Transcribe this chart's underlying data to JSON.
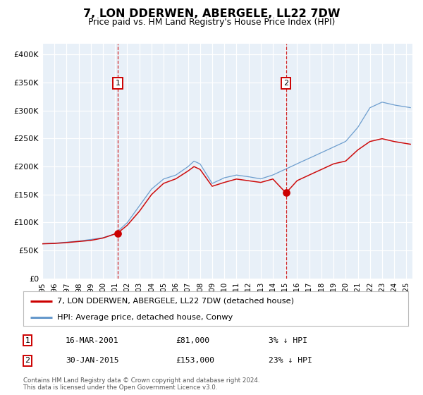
{
  "title": "7, LON DDERWEN, ABERGELE, LL22 7DW",
  "subtitle": "Price paid vs. HM Land Registry's House Price Index (HPI)",
  "legend_label_red": "7, LON DDERWEN, ABERGELE, LL22 7DW (detached house)",
  "legend_label_blue": "HPI: Average price, detached house, Conwy",
  "marker1_date_num": 2001.21,
  "marker1_price": 81000,
  "marker1_text": "16-MAR-2001",
  "marker1_price_str": "£81,000",
  "marker1_hpi_str": "3% ↓ HPI",
  "marker2_date_num": 2015.08,
  "marker2_price": 153000,
  "marker2_text": "30-JAN-2015",
  "marker2_price_str": "£153,000",
  "marker2_hpi_str": "23% ↓ HPI",
  "footer1": "Contains HM Land Registry data © Crown copyright and database right 2024.",
  "footer2": "This data is licensed under the Open Government Licence v3.0.",
  "red_color": "#cc0000",
  "blue_color": "#6699cc",
  "bg_color": "#e8f0f8",
  "grid_color": "#ffffff",
  "ylim": [
    0,
    420000
  ],
  "xlim_start": 1995.0,
  "xlim_end": 2025.5,
  "yticks": [
    0,
    50000,
    100000,
    150000,
    200000,
    250000,
    300000,
    350000,
    400000
  ],
  "ytick_labels": [
    "£0",
    "£50K",
    "£100K",
    "£150K",
    "£200K",
    "£250K",
    "£300K",
    "£350K",
    "£400K"
  ],
  "xtick_years": [
    1995,
    1996,
    1997,
    1998,
    1999,
    2000,
    2001,
    2002,
    2003,
    2004,
    2005,
    2006,
    2007,
    2008,
    2009,
    2010,
    2011,
    2012,
    2013,
    2014,
    2015,
    2016,
    2017,
    2018,
    2019,
    2020,
    2021,
    2022,
    2023,
    2024,
    2025
  ],
  "hpi_anchors_x": [
    1995.0,
    1996.0,
    1997.0,
    1998.0,
    1999.0,
    2000.0,
    2001.0,
    2002.0,
    2003.0,
    2004.0,
    2005.0,
    2006.0,
    2007.0,
    2007.5,
    2008.0,
    2009.0,
    2010.0,
    2011.0,
    2012.0,
    2013.0,
    2014.0,
    2015.0,
    2016.0,
    2017.0,
    2018.0,
    2019.0,
    2020.0,
    2021.0,
    2022.0,
    2023.0,
    2024.0,
    2025.4
  ],
  "hpi_anchors_y": [
    62000,
    63000,
    65000,
    67000,
    70000,
    73000,
    80000,
    100000,
    130000,
    160000,
    178000,
    185000,
    200000,
    210000,
    205000,
    170000,
    180000,
    185000,
    182000,
    178000,
    185000,
    195000,
    205000,
    215000,
    225000,
    235000,
    245000,
    270000,
    305000,
    315000,
    310000,
    305000
  ],
  "red_anchors_x": [
    1995.0,
    1996.0,
    1997.0,
    1998.0,
    1999.0,
    2000.0,
    2001.21,
    2002.0,
    2003.0,
    2004.0,
    2005.0,
    2006.0,
    2007.0,
    2007.5,
    2008.0,
    2009.0,
    2010.0,
    2011.0,
    2012.0,
    2013.0,
    2014.0,
    2015.08,
    2016.0,
    2017.0,
    2018.0,
    2019.0,
    2020.0,
    2021.0,
    2022.0,
    2023.0,
    2024.0,
    2025.4
  ],
  "red_anchors_y": [
    62000,
    62500,
    64000,
    66000,
    68000,
    72000,
    81000,
    95000,
    120000,
    150000,
    170000,
    178000,
    192000,
    200000,
    195000,
    165000,
    172000,
    178000,
    175000,
    172000,
    178000,
    153000,
    175000,
    185000,
    195000,
    205000,
    210000,
    230000,
    245000,
    250000,
    245000,
    240000
  ]
}
